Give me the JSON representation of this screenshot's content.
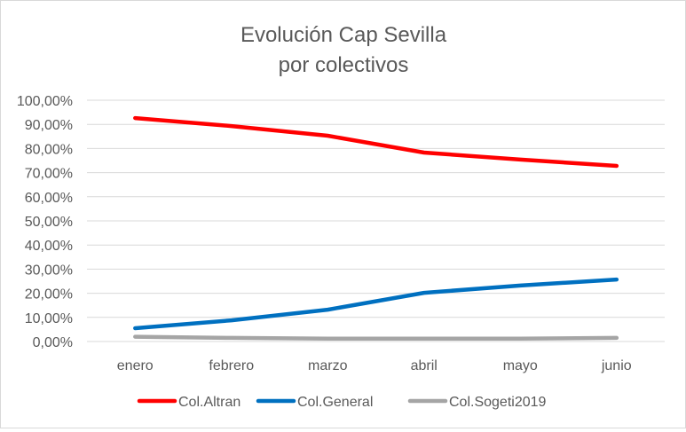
{
  "chart_data": {
    "type": "line",
    "title_line1": "Evolución Cap Sevilla",
    "title_line2": "por colectivos",
    "xlabel": "",
    "ylabel": "",
    "categories": [
      "enero",
      "febrero",
      "marzo",
      "abril",
      "mayo",
      "junio"
    ],
    "ylim": [
      0,
      100
    ],
    "yticks": [
      0,
      10,
      20,
      30,
      40,
      50,
      60,
      70,
      80,
      90,
      100
    ],
    "ytick_labels": [
      "0,00%",
      "10,00%",
      "20,00%",
      "30,00%",
      "40,00%",
      "50,00%",
      "60,00%",
      "70,00%",
      "80,00%",
      "90,00%",
      "100,00%"
    ],
    "grid": true,
    "legend_position": "bottom",
    "series": [
      {
        "name": "Col.Altran",
        "color": "#ff0000",
        "values": [
          92.6,
          89.3,
          85.3,
          78.3,
          75.4,
          72.8
        ]
      },
      {
        "name": "Col.General",
        "color": "#0070c0",
        "values": [
          5.5,
          8.8,
          13.2,
          20.2,
          23.2,
          25.7
        ]
      },
      {
        "name": "Col.Sogeti2019",
        "color": "#a5a5a5",
        "values": [
          2.0,
          1.5,
          1.2,
          1.2,
          1.2,
          1.5
        ]
      }
    ]
  }
}
